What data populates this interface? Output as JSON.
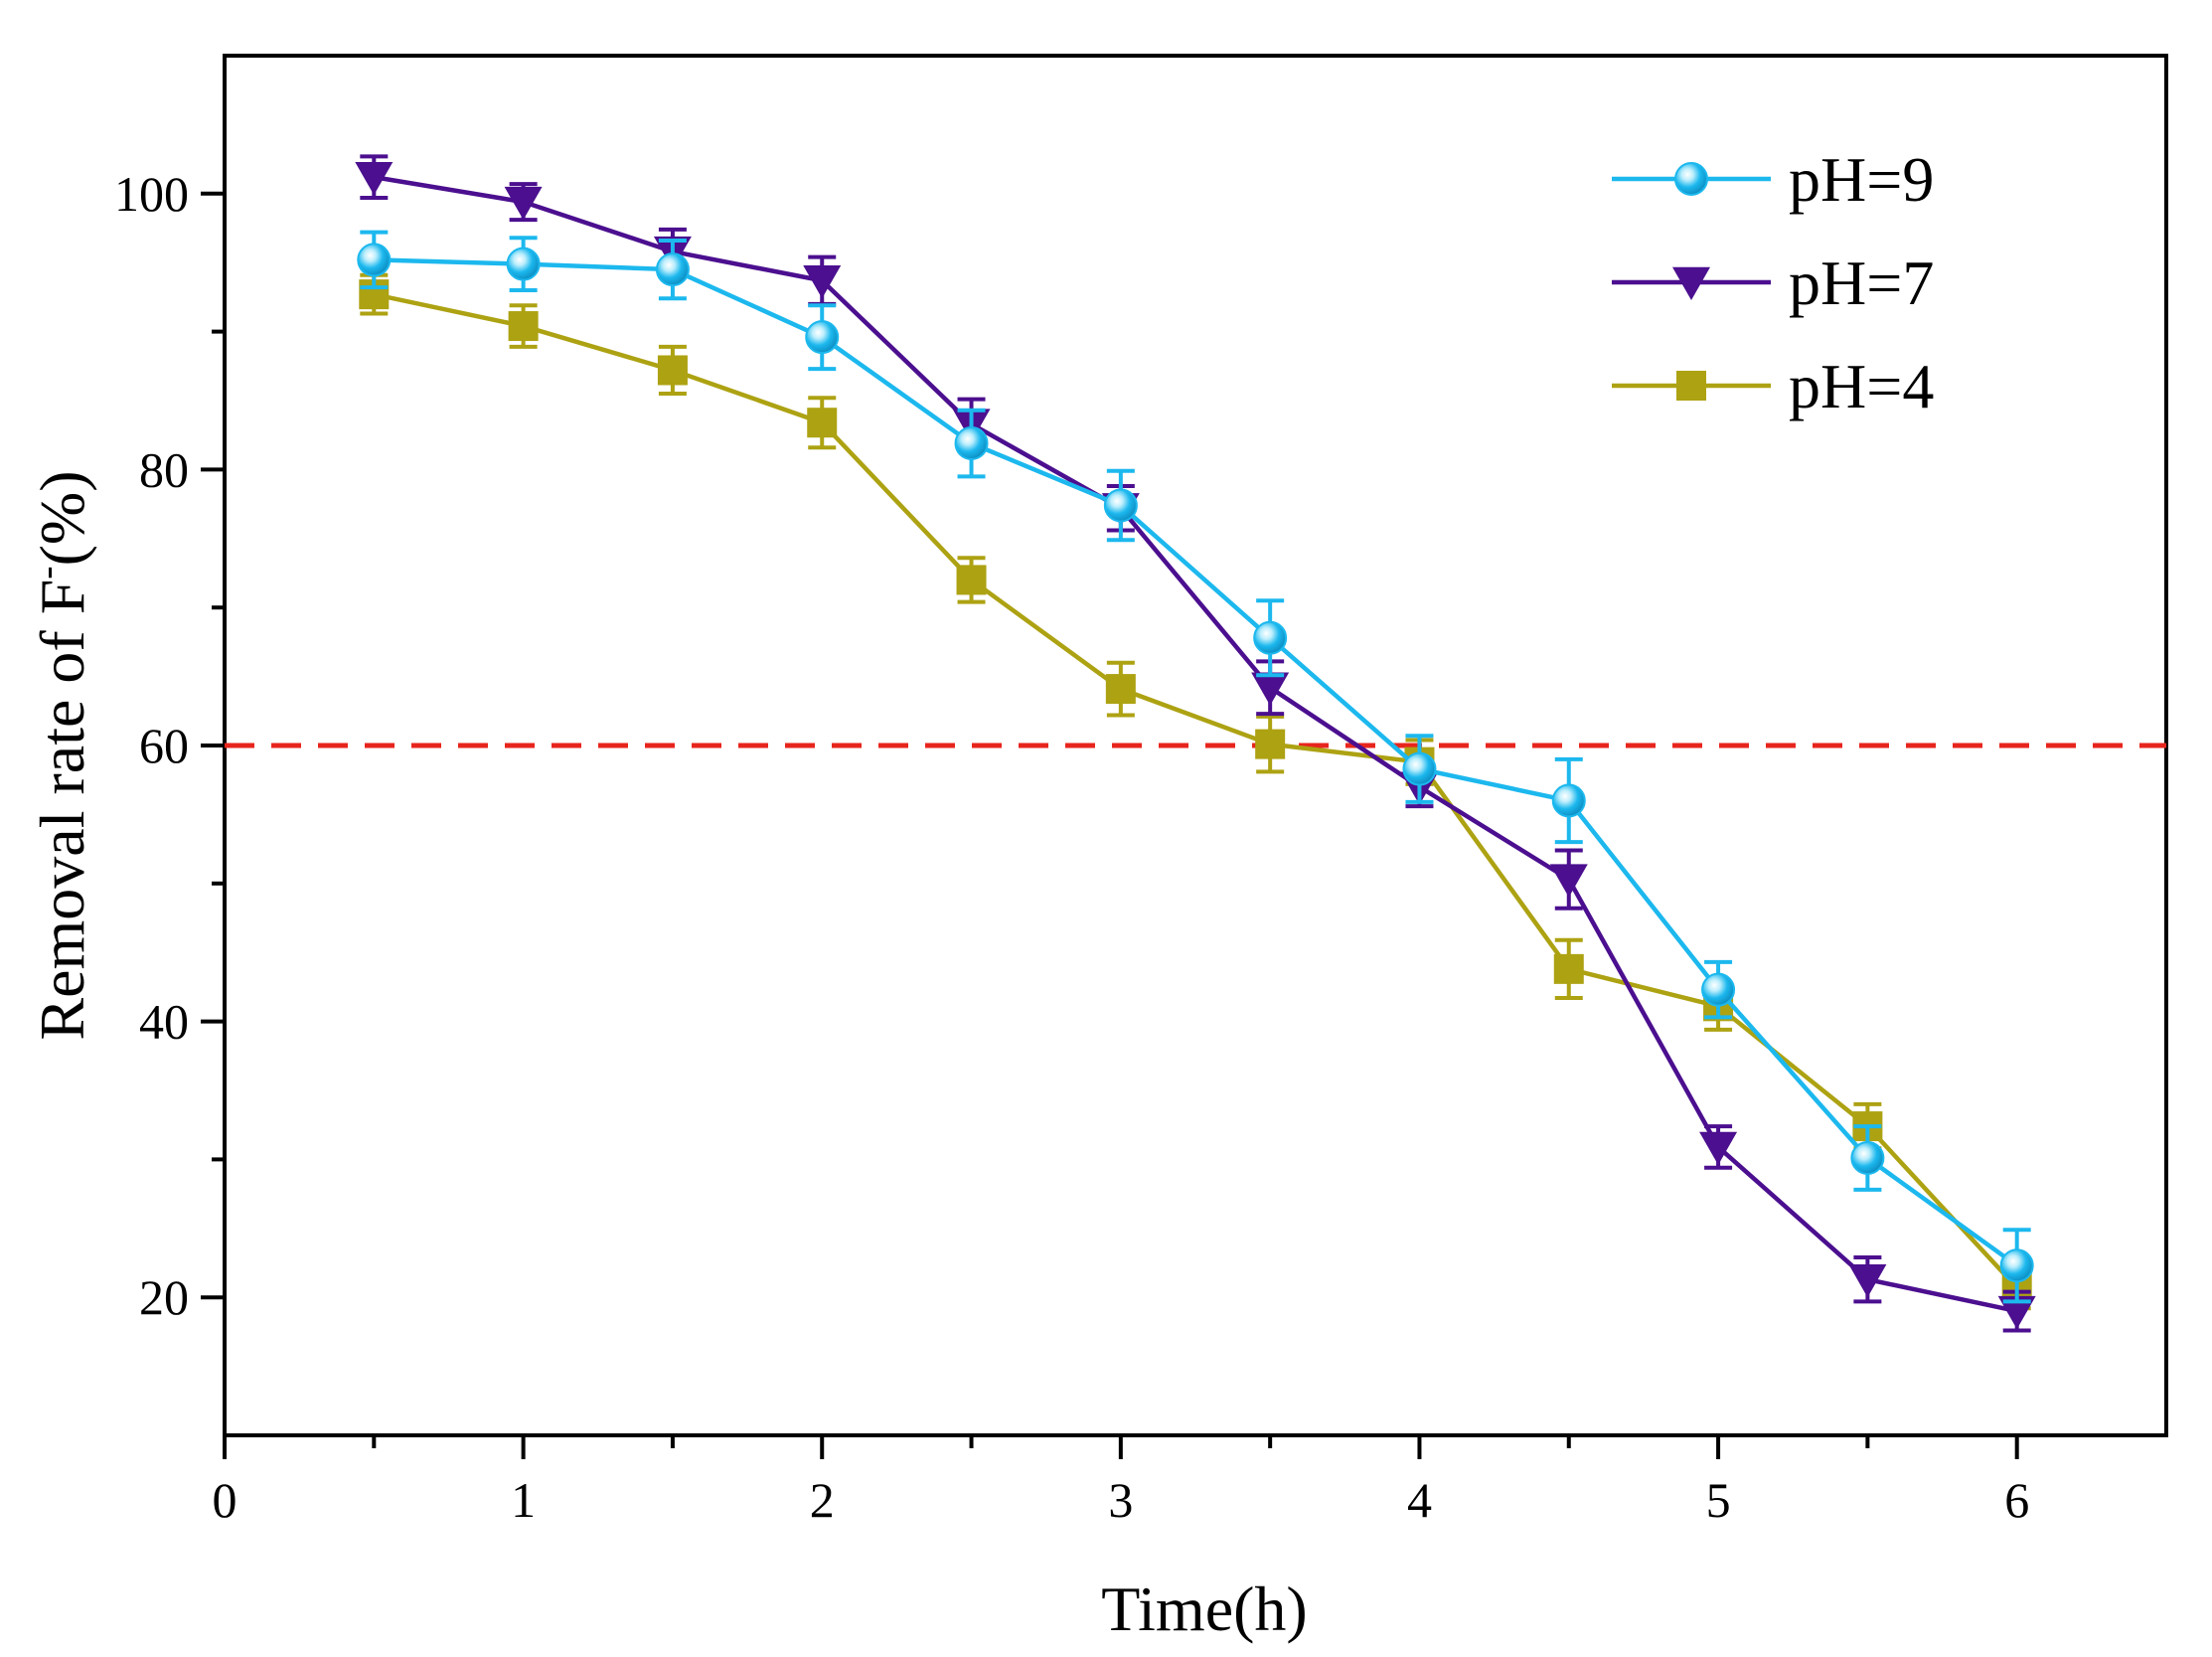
{
  "chart_data": {
    "type": "line",
    "xlabel": "Time(h)",
    "ylabel_main": "Removal rate of F",
    "ylabel_sup": "-",
    "ylabel_tail": "(%)",
    "xlim": [
      0,
      6.5
    ],
    "ylim": [
      10,
      110
    ],
    "x_ticks": [
      0,
      1,
      2,
      3,
      4,
      5,
      6
    ],
    "x_minor_ticks": [
      0.5,
      1.5,
      2.5,
      3.5,
      4.5,
      5.5
    ],
    "y_ticks": [
      20,
      40,
      60,
      80,
      100
    ],
    "y_minor_ticks": [
      30,
      50,
      70,
      90
    ],
    "grid": false,
    "legend_position": "top-right",
    "threshold_line": {
      "y": 60,
      "color": "#e8251d",
      "style": "dashed"
    },
    "x": [
      0.5,
      1,
      1.5,
      2,
      2.5,
      3,
      3.5,
      4,
      4.5,
      5,
      5.5,
      6
    ],
    "series": [
      {
        "name": "pH=9",
        "color": "#1cb8ee",
        "marker": "sphere",
        "values": [
          95.2,
          94.9,
          94.5,
          89.6,
          81.9,
          77.4,
          67.8,
          58.3,
          56.0,
          42.3,
          30.1,
          22.3
        ],
        "errors": [
          2.0,
          1.9,
          2.1,
          2.3,
          2.4,
          2.5,
          2.7,
          2.4,
          3.0,
          2.0,
          2.3,
          2.6
        ]
      },
      {
        "name": "pH=7",
        "color": "#4b0f8f",
        "marker": "triangle-down",
        "values": [
          101.2,
          99.4,
          95.8,
          93.7,
          83.3,
          77.2,
          64.2,
          57.0,
          50.3,
          30.9,
          21.3,
          19.0
        ],
        "errors": [
          1.5,
          1.3,
          1.6,
          1.7,
          1.8,
          1.6,
          1.9,
          1.4,
          2.1,
          1.5,
          1.6,
          1.4
        ]
      },
      {
        "name": "pH=4",
        "color": "#ada212",
        "marker": "square",
        "values": [
          92.7,
          90.4,
          87.2,
          83.4,
          72.0,
          64.1,
          60.1,
          58.8,
          43.8,
          41.1,
          32.4,
          20.7
        ],
        "errors": [
          1.4,
          1.5,
          1.7,
          1.8,
          1.6,
          1.9,
          2.0,
          1.6,
          2.1,
          1.7,
          1.6,
          1.5
        ]
      }
    ]
  }
}
